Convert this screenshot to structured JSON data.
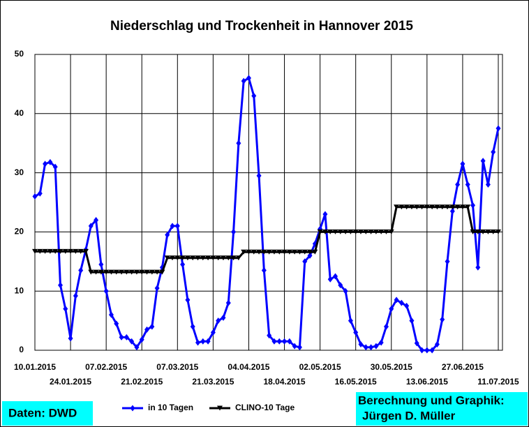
{
  "chart_data": {
    "type": "line",
    "title": "Niederschlag und Trockenheit in Hannover 2015",
    "categories": [
      "10.01.2015",
      null,
      null,
      null,
      null,
      null,
      null,
      "24.01.2015",
      null,
      null,
      null,
      null,
      null,
      null,
      "07.02.2015",
      null,
      null,
      null,
      null,
      null,
      null,
      "21.02.2015",
      null,
      null,
      null,
      null,
      null,
      null,
      "07.03.2015",
      null,
      null,
      null,
      null,
      null,
      null,
      "21.03.2015",
      null,
      null,
      null,
      null,
      null,
      null,
      "04.04.2015",
      null,
      null,
      null,
      null,
      null,
      null,
      "18.04.2015",
      null,
      null,
      null,
      null,
      null,
      null,
      "02.05.2015",
      null,
      null,
      null,
      null,
      null,
      null,
      "16.05.2015",
      null,
      null,
      null,
      null,
      null,
      null,
      "30.05.2015",
      null,
      null,
      null,
      null,
      null,
      null,
      "13.06.2015",
      null,
      null,
      null,
      null,
      null,
      null,
      "27.06.2015",
      null,
      null,
      null,
      null,
      null,
      null,
      "11.07.2015"
    ],
    "series": [
      {
        "name": "in 10 Tagen",
        "color": "#0000ff",
        "marker": "diamond",
        "values": [
          26,
          26.5,
          31.5,
          31.8,
          31,
          11,
          7,
          2,
          9.2,
          13.5,
          17,
          21,
          22,
          14.5,
          10,
          6,
          4.5,
          2.2,
          2.2,
          1.5,
          0.5,
          1.8,
          3.5,
          4,
          10.5,
          14,
          19.5,
          21,
          21,
          14.5,
          8.5,
          4,
          1.3,
          1.5,
          1.5,
          3,
          5,
          5.5,
          8,
          20,
          35,
          45.5,
          46,
          43,
          29.5,
          13.5,
          2.5,
          1.5,
          1.5,
          1.5,
          1.5,
          0.7,
          0.5,
          15,
          16,
          18,
          20.5,
          23,
          12,
          12.5,
          11,
          10,
          5,
          3,
          1,
          0.5,
          0.5,
          0.7,
          1.3,
          4,
          7,
          8.5,
          8,
          7.5,
          5,
          1.2,
          0,
          0,
          0,
          1,
          5.2,
          15,
          23.5,
          28,
          31.5,
          28,
          24.5,
          14,
          32,
          28,
          33.5,
          37.5
        ]
      },
      {
        "name": "CLINO-10 Tage",
        "color": "#000000",
        "marker": "triangle-down",
        "values": [
          16.7,
          16.7,
          16.7,
          16.7,
          16.7,
          16.7,
          16.7,
          16.7,
          16.7,
          16.7,
          16.7,
          13.2,
          13.2,
          13.2,
          13.2,
          13.2,
          13.2,
          13.2,
          13.2,
          13.2,
          13.2,
          13.2,
          13.2,
          13.2,
          13.2,
          13.2,
          15.6,
          15.6,
          15.6,
          15.6,
          15.6,
          15.6,
          15.6,
          15.6,
          15.6,
          15.6,
          15.6,
          15.6,
          15.6,
          15.6,
          15.6,
          16.6,
          16.6,
          16.6,
          16.6,
          16.6,
          16.6,
          16.6,
          16.6,
          16.6,
          16.6,
          16.6,
          16.6,
          16.6,
          16.6,
          16.6,
          20,
          20,
          20,
          20,
          20,
          20,
          20,
          20,
          20,
          20,
          20,
          20,
          20,
          20,
          20,
          24.2,
          24.2,
          24.2,
          24.2,
          24.2,
          24.2,
          24.2,
          24.2,
          24.2,
          24.2,
          24.2,
          24.2,
          24.2,
          24.2,
          24.2,
          20,
          20,
          20,
          20,
          20,
          20
        ]
      }
    ],
    "ylim": [
      0,
      50
    ],
    "yticks": [
      0,
      10,
      20,
      30,
      40,
      50
    ],
    "grid": true,
    "legend": "bottom",
    "source": "Daten: DWD",
    "credit": [
      "Berechnung und Graphik:",
      "Jürgen D. Müller"
    ]
  }
}
